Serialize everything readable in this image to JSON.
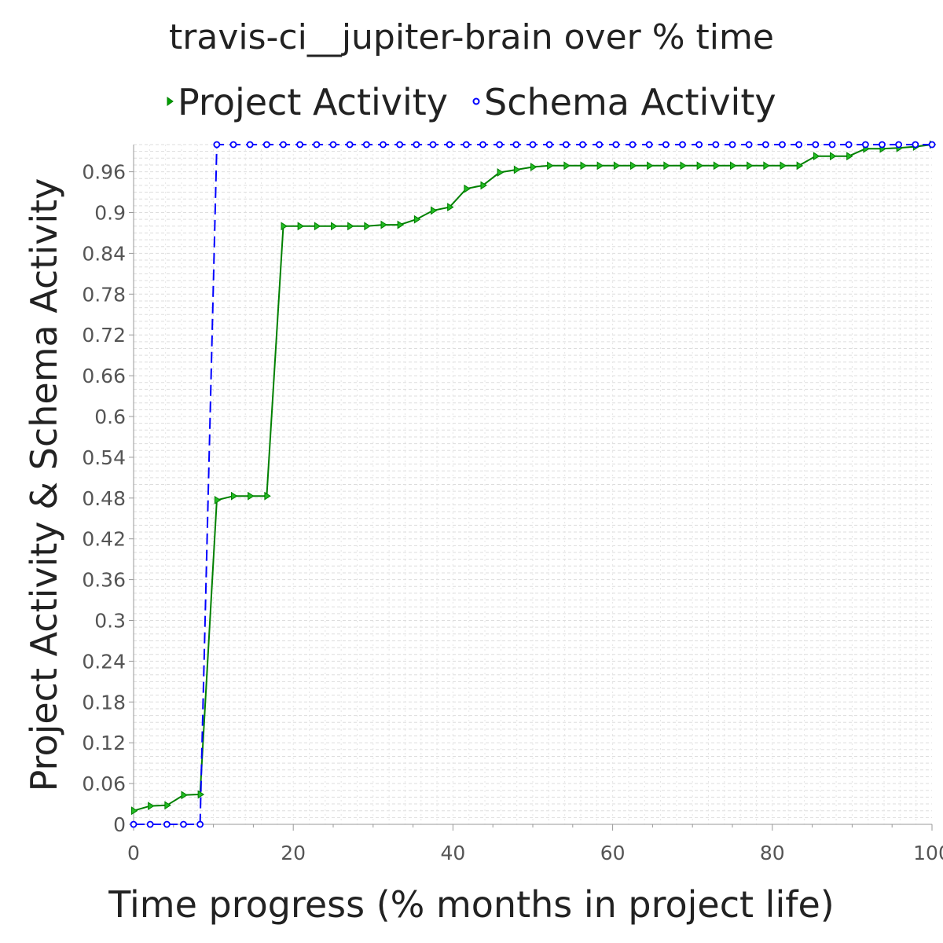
{
  "chart_data": {
    "type": "line",
    "title": "travis-ci__jupiter-brain over % time",
    "xlabel": "Time progress (% months in project life)",
    "ylabel": "Project Activity & Schema Activity",
    "xlim": [
      0,
      100
    ],
    "ylim": [
      0,
      1
    ],
    "x_ticks": [
      0,
      20,
      40,
      60,
      80,
      100
    ],
    "x_tick_labels": [
      "0",
      "20",
      "40",
      "60",
      "80",
      "100"
    ],
    "y_ticks": [
      0,
      0.06,
      0.12,
      0.18,
      0.24,
      0.3,
      0.36,
      0.42,
      0.48,
      0.54,
      0.6,
      0.66,
      0.72,
      0.78,
      0.84,
      0.9,
      0.96
    ],
    "y_tick_labels": [
      "0",
      "0.06",
      "0.12",
      "0.18",
      "0.24",
      "0.3",
      "0.36",
      "0.42",
      "0.48",
      "0.54",
      "0.6",
      "0.66",
      "0.72",
      "0.78",
      "0.84",
      "0.9",
      "0.96"
    ],
    "grid": true,
    "legend_position": "top",
    "series": [
      {
        "name": "Project Activity",
        "color": "#008000",
        "marker": "triangle-right",
        "line_style": "solid",
        "x": [
          0,
          2.08,
          4.17,
          6.25,
          8.33,
          10.42,
          12.5,
          14.58,
          16.67,
          18.75,
          20.83,
          22.92,
          25,
          27.08,
          29.17,
          31.25,
          33.33,
          35.42,
          37.5,
          39.58,
          41.67,
          43.75,
          45.83,
          47.92,
          50,
          52.08,
          54.17,
          56.25,
          58.33,
          60.42,
          62.5,
          64.58,
          66.67,
          68.75,
          70.83,
          72.92,
          75,
          77.08,
          79.17,
          81.25,
          83.33,
          85.42,
          87.5,
          89.58,
          91.67,
          93.75,
          95.83,
          97.92,
          100
        ],
        "y": [
          0.02,
          0.027,
          0.028,
          0.043,
          0.044,
          0.477,
          0.483,
          0.483,
          0.483,
          0.88,
          0.88,
          0.88,
          0.88,
          0.88,
          0.88,
          0.882,
          0.882,
          0.89,
          0.903,
          0.908,
          0.935,
          0.94,
          0.959,
          0.963,
          0.967,
          0.969,
          0.969,
          0.969,
          0.969,
          0.969,
          0.969,
          0.969,
          0.969,
          0.969,
          0.969,
          0.969,
          0.969,
          0.969,
          0.969,
          0.969,
          0.969,
          0.983,
          0.983,
          0.983,
          0.994,
          0.994,
          0.995,
          0.997,
          1.0
        ]
      },
      {
        "name": "Schema Activity",
        "color": "#0000ff",
        "marker": "circle",
        "line_style": "dashed",
        "x": [
          0,
          2.08,
          4.17,
          6.25,
          8.33,
          10.42,
          12.5,
          14.58,
          16.67,
          18.75,
          20.83,
          22.92,
          25,
          27.08,
          29.17,
          31.25,
          33.33,
          35.42,
          37.5,
          39.58,
          41.67,
          43.75,
          45.83,
          47.92,
          50,
          52.08,
          54.17,
          56.25,
          58.33,
          60.42,
          62.5,
          64.58,
          66.67,
          68.75,
          70.83,
          72.92,
          75,
          77.08,
          79.17,
          81.25,
          83.33,
          85.42,
          87.5,
          89.58,
          91.67,
          93.75,
          95.83,
          97.92,
          100
        ],
        "y": [
          0,
          0,
          0,
          0,
          0,
          1,
          1,
          1,
          1,
          1,
          1,
          1,
          1,
          1,
          1,
          1,
          1,
          1,
          1,
          1,
          1,
          1,
          1,
          1,
          1,
          1,
          1,
          1,
          1,
          1,
          1,
          1,
          1,
          1,
          1,
          1,
          1,
          1,
          1,
          1,
          1,
          1,
          1,
          1,
          1,
          1,
          1,
          1,
          1
        ]
      }
    ]
  }
}
